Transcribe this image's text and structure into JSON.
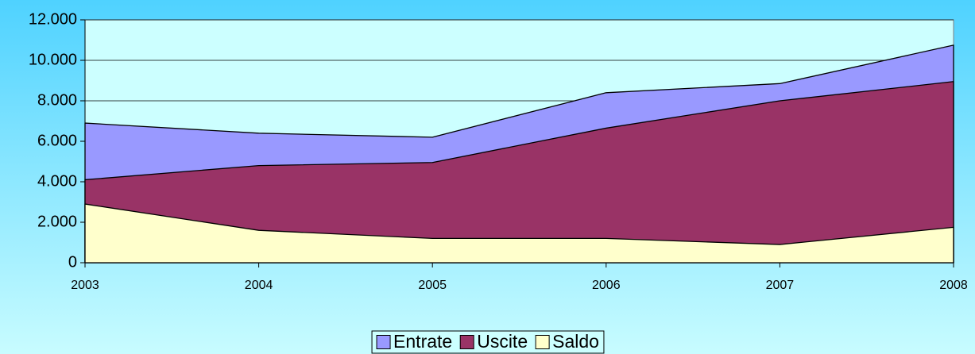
{
  "chart_data": {
    "type": "area",
    "categories": [
      "2003",
      "2004",
      "2005",
      "2006",
      "2007",
      "2008"
    ],
    "series": [
      {
        "name": "Entrate",
        "color": "#9999ff",
        "values": [
          6900,
          6400,
          6200,
          8400,
          8850,
          10750
        ]
      },
      {
        "name": "Uscite",
        "color": "#993366",
        "values": [
          4100,
          4800,
          4950,
          6650,
          8000,
          8950
        ]
      },
      {
        "name": "Saldo",
        "color": "#ffffcc",
        "values": [
          2900,
          1600,
          1200,
          1200,
          900,
          1750
        ]
      }
    ],
    "ylim": [
      0,
      12000
    ],
    "yticks": [
      0,
      {
        "value": 2000,
        "label": "2.000"
      },
      {
        "value": 4000,
        "label": "4.000"
      },
      {
        "value": 6000,
        "label": "6.000"
      },
      {
        "value": 8000,
        "label": "8.000"
      },
      {
        "value": 10000,
        "label": "10.000"
      },
      {
        "value": 12000,
        "label": "12.000"
      }
    ],
    "grid": true,
    "legend": "bottom"
  }
}
